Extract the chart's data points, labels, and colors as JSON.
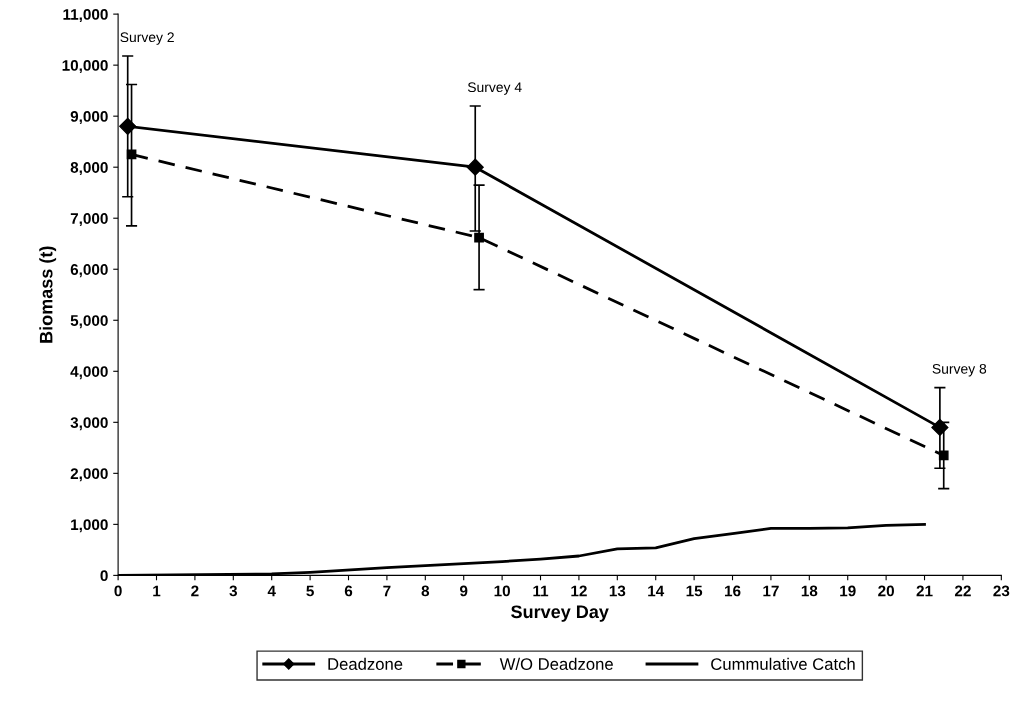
{
  "chart_data": {
    "type": "line",
    "xlabel": "Survey Day",
    "ylabel": "Biomass (t)",
    "xlim": [
      0,
      23
    ],
    "xticks": [
      0,
      1,
      2,
      3,
      4,
      5,
      6,
      7,
      8,
      9,
      10,
      11,
      12,
      13,
      14,
      15,
      16,
      17,
      18,
      19,
      20,
      21,
      22,
      23
    ],
    "ylim": [
      0,
      11000
    ],
    "yticks": [
      {
        "value": 0,
        "label": "0"
      },
      {
        "value": 1000,
        "label": "1,000"
      },
      {
        "value": 2000,
        "label": "2,000"
      },
      {
        "value": 3000,
        "label": "3,000"
      },
      {
        "value": 4000,
        "label": "4,000"
      },
      {
        "value": 5000,
        "label": "5,000"
      },
      {
        "value": 6000,
        "label": "6,000"
      },
      {
        "value": 7000,
        "label": "7,000"
      },
      {
        "value": 8000,
        "label": "8,000"
      },
      {
        "value": 9000,
        "label": "9,000"
      },
      {
        "value": 10000,
        "label": "10,000"
      },
      {
        "value": 11000,
        "label": "11,000"
      }
    ],
    "grid": false,
    "legend": "bottom",
    "series": [
      {
        "name": "Deadzone",
        "color": "#000000",
        "marker": "diamond",
        "line_style": "solid",
        "x": [
          0.25,
          9.3,
          21.4
        ],
        "values": [
          8800,
          8000,
          2900
        ],
        "errors": [
          [
            7420,
            10180
          ],
          [
            6750,
            9200
          ],
          [
            2100,
            3680
          ]
        ]
      },
      {
        "name": "W/O Deadzone",
        "color": "#000000",
        "marker": "square",
        "line_style": "dashed",
        "x": [
          0.35,
          9.4,
          21.5
        ],
        "values": [
          8250,
          6620,
          2350
        ],
        "errors": [
          [
            6850,
            9620
          ],
          [
            5600,
            7650
          ],
          [
            1700,
            3000
          ]
        ]
      },
      {
        "name": "Cummulative Catch",
        "color": "#000000",
        "marker": "none",
        "line_style": "solid",
        "x": [
          0,
          4,
          5,
          7,
          9,
          10,
          11,
          12,
          13,
          14,
          15,
          16,
          17,
          18,
          19,
          20,
          21
        ],
        "values": [
          0,
          30,
          60,
          150,
          230,
          270,
          320,
          380,
          520,
          540,
          720,
          820,
          920,
          920,
          930,
          980,
          1000
        ]
      }
    ],
    "annotations": [
      {
        "text": "Survey 2",
        "x": 0.25,
        "y": 10180
      },
      {
        "text": "Survey 4",
        "x": 9.3,
        "y": 9200
      },
      {
        "text": "Survey 8",
        "x": 21.4,
        "y": 3680
      }
    ]
  }
}
